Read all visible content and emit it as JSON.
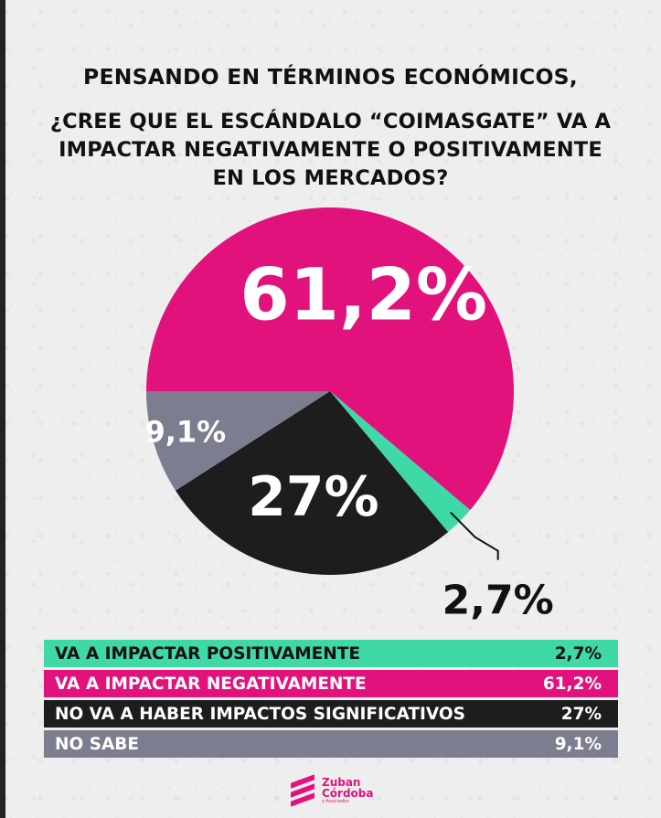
{
  "header": {
    "line1": "PENSANDO EN TÉRMINOS ECONÓMICOS,",
    "question_lines": [
      "¿CREE QUE EL ESCÁNDALO “COIMASGATE” VA A",
      "IMPACTAR NEGATIVAMENTE O POSITIVAMENTE",
      "EN LOS MERCADOS?"
    ]
  },
  "chart_data": {
    "type": "pie",
    "title": "PENSANDO EN TÉRMINOS ECONÓMICOS, ¿CREE QUE EL ESCÁNDALO “COIMASGATE” VA A IMPACTAR NEGATIVAMENTE O POSITIVAMENTE EN LOS MERCADOS?",
    "categories": [
      "VA A IMPACTAR NEGATIVAMENTE",
      "VA A IMPACTAR POSITIVAMENTE",
      "NO VA A HABER IMPACTOS SIGNIFICATIVOS",
      "NO SABE"
    ],
    "values": [
      61.2,
      2.7,
      27,
      9.1
    ],
    "labels": [
      "61,2%",
      "2,7%",
      "27%",
      "9,1%"
    ],
    "colors": [
      "#e2127c",
      "#3ed9a6",
      "#1d1d1d",
      "#7c7d8e"
    ],
    "label_colors": [
      "#ffffff",
      "#111111",
      "#ffffff",
      "#ffffff"
    ]
  },
  "legend": [
    {
      "label": "VA A IMPACTAR POSITIVAMENTE",
      "value": "2,7%",
      "color": "#3ed9a6",
      "text_color": "#111111"
    },
    {
      "label": "VA A IMPACTAR NEGATIVAMENTE",
      "value": "61,2%",
      "color": "#e2127c",
      "text_color": "#ffffff"
    },
    {
      "label": "NO VA A HABER IMPACTOS SIGNIFICATIVOS",
      "value": "27%",
      "color": "#1d1d1d",
      "text_color": "#ffffff"
    },
    {
      "label": "NO SABE",
      "value": "9,1%",
      "color": "#7c7d8e",
      "text_color": "#ffffff"
    }
  ],
  "logo": {
    "line1": "Zuban",
    "line2": "Córdoba",
    "line3": "y Asociados",
    "color": "#e2127c"
  }
}
